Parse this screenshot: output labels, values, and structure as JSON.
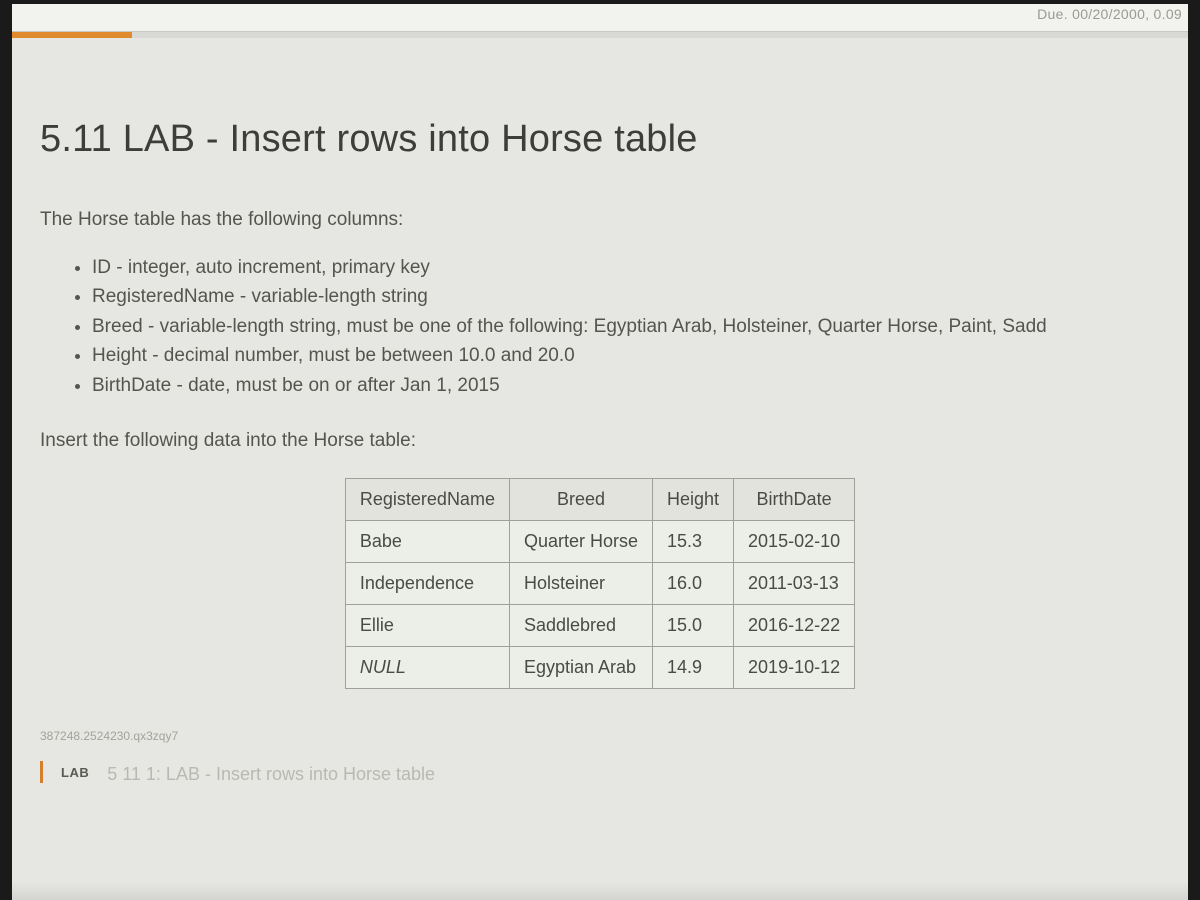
{
  "topbar": {
    "date_fragment": "Due. 00/20/2000, 0.09"
  },
  "page": {
    "title": "5.11 LAB - Insert rows into Horse table",
    "intro": "The Horse table has the following columns:",
    "columns": [
      "ID - integer, auto increment, primary key",
      "RegisteredName - variable-length string",
      "Breed - variable-length string, must be one of the following: Egyptian Arab, Holsteiner, Quarter Horse, Paint, Sadd",
      "Height - decimal number, must be between 10.0 and 20.0",
      "BirthDate - date, must be on or after Jan 1, 2015"
    ],
    "instruction": "Insert the following data into the Horse table:"
  },
  "horse_table": {
    "type": "table",
    "border_color": "#9fa09a",
    "header_bg": "#e2e3dd",
    "body_bg": "#eceee8",
    "font_size": 18,
    "headers": [
      "RegisteredName",
      "Breed",
      "Height",
      "BirthDate"
    ],
    "rows": [
      {
        "name": "Babe",
        "name_italic": false,
        "breed": "Quarter Horse",
        "height": "15.3",
        "birth": "2015-02-10"
      },
      {
        "name": "Independence",
        "name_italic": false,
        "breed": "Holsteiner",
        "height": "16.0",
        "birth": "2011-03-13"
      },
      {
        "name": "Ellie",
        "name_italic": false,
        "breed": "Saddlebred",
        "height": "15.0",
        "birth": "2016-12-22"
      },
      {
        "name": "NULL",
        "name_italic": true,
        "breed": "Egyptian Arab",
        "height": "14.9",
        "birth": "2019-10-12"
      }
    ]
  },
  "footer": {
    "tiny_id": "387248.2524230.qx3zqy7",
    "lab_label": "LAB",
    "lab_subtitle": "5 11 1: LAB - Insert rows into Horse table"
  },
  "colors": {
    "page_bg": "#e6e7e2",
    "accent_orange": "#d67f2a",
    "text": "#4a4a46"
  }
}
